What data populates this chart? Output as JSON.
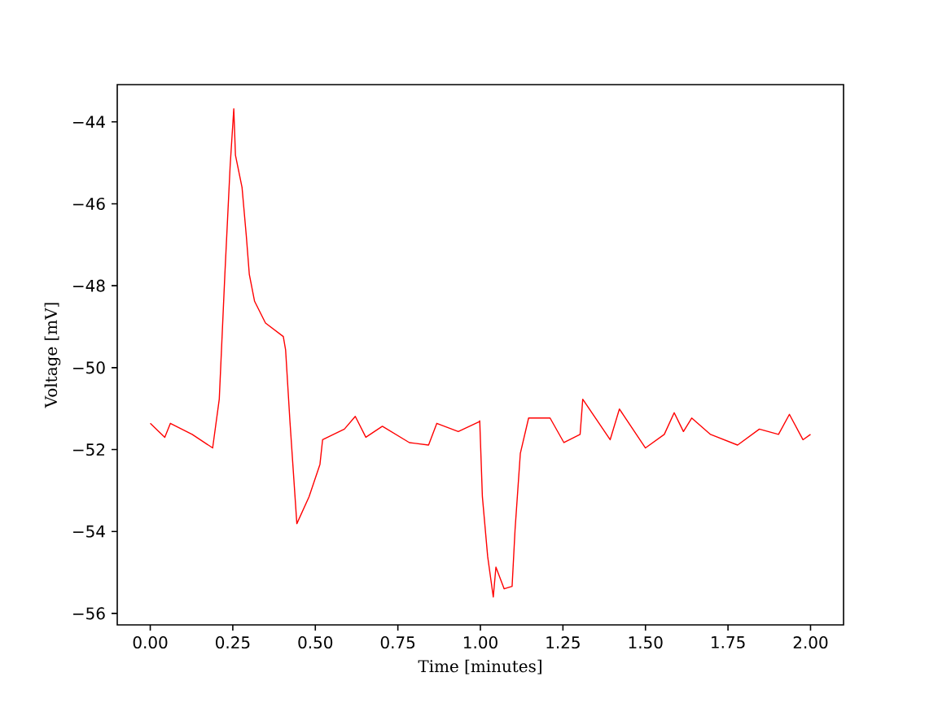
{
  "chart_data": {
    "type": "line",
    "xlabel": "Time [minutes]",
    "ylabel": "Voltage [mV]",
    "xlim": [
      -0.1,
      2.1
    ],
    "ylim": [
      -56.28,
      -43.09
    ],
    "xticks": [
      {
        "value": 0,
        "label": "0.00"
      },
      {
        "value": 0.25,
        "label": "0.25"
      },
      {
        "value": 0.5,
        "label": "0.50"
      },
      {
        "value": 0.75,
        "label": "0.75"
      },
      {
        "value": 1,
        "label": "1.00"
      },
      {
        "value": 1.25,
        "label": "1.25"
      },
      {
        "value": 1.5,
        "label": "1.50"
      },
      {
        "value": 1.75,
        "label": "1.75"
      },
      {
        "value": 2,
        "label": "2.00"
      }
    ],
    "yticks": [
      {
        "value": -56,
        "label": "−56"
      },
      {
        "value": -54,
        "label": "−54"
      },
      {
        "value": -52,
        "label": "−52"
      },
      {
        "value": -50,
        "label": "−50"
      },
      {
        "value": -48,
        "label": "−48"
      },
      {
        "value": -46,
        "label": "−46"
      },
      {
        "value": -44,
        "label": "−44"
      }
    ],
    "marker": "none",
    "line_style": "solid",
    "series": [
      {
        "color": "#ff0000",
        "x": [
          0.0,
          0.044,
          0.061,
          0.127,
          0.189,
          0.209,
          0.226,
          0.242,
          0.253,
          0.258,
          0.278,
          0.291,
          0.3,
          0.316,
          0.349,
          0.403,
          0.41,
          0.423,
          0.444,
          0.481,
          0.514,
          0.522,
          0.588,
          0.621,
          0.653,
          0.703,
          0.785,
          0.843,
          0.868,
          0.933,
          0.996,
          0.998,
          1.006,
          1.022,
          1.039,
          1.047,
          1.072,
          1.096,
          1.105,
          1.121,
          1.146,
          1.211,
          1.253,
          1.302,
          1.31,
          1.393,
          1.421,
          1.5,
          1.557,
          1.587,
          1.615,
          1.64,
          1.697,
          1.779,
          1.845,
          1.903,
          1.936,
          1.977,
          2.0
        ],
        "values": [
          -51.36,
          -51.7,
          -51.36,
          -51.63,
          -51.96,
          -50.77,
          -47.72,
          -45.07,
          -43.68,
          -44.81,
          -45.6,
          -46.79,
          -47.72,
          -48.38,
          -48.91,
          -49.24,
          -49.57,
          -51.3,
          -53.81,
          -53.15,
          -52.36,
          -51.76,
          -51.5,
          -51.19,
          -51.7,
          -51.43,
          -51.83,
          -51.89,
          -51.36,
          -51.56,
          -51.32,
          -51.3,
          -53.15,
          -54.61,
          -55.6,
          -54.87,
          -55.4,
          -55.34,
          -53.95,
          -52.09,
          -51.23,
          -51.23,
          -51.83,
          -51.63,
          -50.77,
          -51.76,
          -51.01,
          -51.96,
          -51.63,
          -51.1,
          -51.56,
          -51.23,
          -51.63,
          -51.89,
          -51.5,
          -51.63,
          -51.14,
          -51.76,
          -51.63
        ]
      }
    ]
  }
}
